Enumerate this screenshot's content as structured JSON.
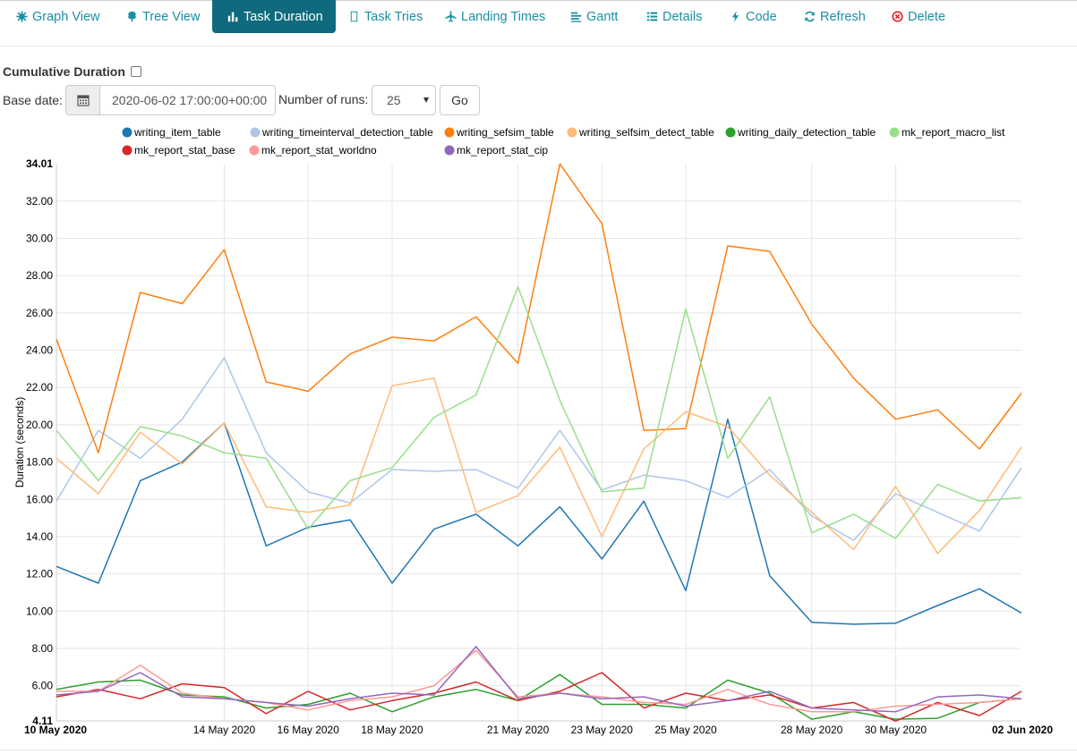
{
  "tabs": [
    {
      "label": "Graph View",
      "icon": "graph-icon",
      "active": false
    },
    {
      "label": "Tree View",
      "icon": "tree-icon",
      "active": false
    },
    {
      "label": "Task Duration",
      "icon": "bar-chart-icon",
      "active": true
    },
    {
      "label": "Task Tries",
      "icon": "tries-icon",
      "active": false
    },
    {
      "label": "Landing Times",
      "icon": "plane-icon",
      "active": false
    },
    {
      "label": "Gantt",
      "icon": "gantt-icon",
      "active": false
    },
    {
      "label": "Details",
      "icon": "list-icon",
      "active": false
    },
    {
      "label": "Code",
      "icon": "bolt-icon",
      "active": false
    },
    {
      "label": "Refresh",
      "icon": "refresh-icon",
      "active": false
    },
    {
      "label": "Delete",
      "icon": "delete-icon",
      "active": false
    }
  ],
  "controls": {
    "cumulative_label": "Cumulative Duration",
    "cumulative_checked": false,
    "base_date_label": "Base date:",
    "base_date_value": "2020-06-02 17:00:00+00:00",
    "runs_label": "Number of runs:",
    "runs_value": "25",
    "go_label": "Go"
  },
  "colors": {
    "accent": "#1b8fa4",
    "active_tab": "#0f6a7e",
    "delete": "#d9262d"
  },
  "chart_data": {
    "type": "line",
    "title": "",
    "xlabel": "",
    "ylabel": "Duration (seconds)",
    "ylim": [
      4.11,
      34.01
    ],
    "y_edge_labels": [
      "4.11",
      "34.01"
    ],
    "y_ticks": [
      "6.00",
      "8.00",
      "10.00",
      "12.00",
      "14.00",
      "16.00",
      "18.00",
      "20.00",
      "22.00",
      "24.00",
      "26.00",
      "28.00",
      "30.00",
      "32.00"
    ],
    "x_start": "2020-05-10",
    "x_end": "2020-06-02",
    "x_edge_labels": [
      "10 May 2020",
      "02 Jun 2020"
    ],
    "x_ticks": [
      {
        "date": "2020-05-14",
        "label": "14 May 2020"
      },
      {
        "date": "2020-05-16",
        "label": "16 May 2020"
      },
      {
        "date": "2020-05-18",
        "label": "18 May 2020"
      },
      {
        "date": "2020-05-21",
        "label": "21 May 2020"
      },
      {
        "date": "2020-05-23",
        "label": "23 May 2020"
      },
      {
        "date": "2020-05-25",
        "label": "25 May 2020"
      },
      {
        "date": "2020-05-28",
        "label": "28 May 2020"
      },
      {
        "date": "2020-05-30",
        "label": "30 May 2020"
      }
    ],
    "grid": true,
    "legend": "top",
    "x": [
      "2020-05-10",
      "2020-05-11",
      "2020-05-12",
      "2020-05-13",
      "2020-05-14",
      "2020-05-15",
      "2020-05-16",
      "2020-05-17",
      "2020-05-18",
      "2020-05-19",
      "2020-05-20",
      "2020-05-21",
      "2020-05-22",
      "2020-05-23",
      "2020-05-24",
      "2020-05-25",
      "2020-05-26",
      "2020-05-27",
      "2020-05-28",
      "2020-05-29",
      "2020-05-30",
      "2020-05-31",
      "2020-06-01",
      "2020-06-02"
    ],
    "series": [
      {
        "name": "writing_item_table",
        "color": "#1f77b4",
        "values": [
          12.4,
          11.5,
          17.0,
          18.0,
          20.1,
          13.5,
          14.5,
          14.9,
          11.5,
          14.4,
          15.2,
          13.5,
          15.6,
          12.8,
          15.9,
          11.1,
          20.3,
          11.9,
          9.4,
          9.3,
          9.35,
          10.3,
          11.2,
          9.9
        ]
      },
      {
        "name": "writing_timeinterval_detection_table",
        "color": "#aec7e8",
        "values": [
          15.9,
          19.7,
          18.2,
          20.3,
          23.6,
          18.5,
          16.4,
          15.8,
          17.6,
          17.5,
          17.6,
          16.6,
          19.7,
          16.5,
          17.3,
          17.0,
          16.1,
          17.6,
          15.1,
          13.8,
          16.3,
          15.3,
          14.3,
          17.7
        ]
      },
      {
        "name": "writing_sefsim_table",
        "color": "#ff7f0e",
        "values": [
          24.6,
          18.5,
          27.1,
          26.5,
          29.4,
          22.3,
          21.8,
          23.8,
          24.7,
          24.5,
          25.8,
          23.3,
          34.0,
          30.8,
          19.7,
          19.8,
          29.6,
          29.3,
          25.4,
          22.5,
          20.3,
          20.8,
          18.7,
          21.7
        ]
      },
      {
        "name": "writing_selfsim_detect_table",
        "color": "#ffbb78",
        "values": [
          18.2,
          16.3,
          19.6,
          17.9,
          20.1,
          15.6,
          15.3,
          15.7,
          22.1,
          22.5,
          15.3,
          16.2,
          18.8,
          14.0,
          18.7,
          20.7,
          19.9,
          17.3,
          15.3,
          13.3,
          16.7,
          13.1,
          15.4,
          18.8
        ]
      },
      {
        "name": "writing_daily_detection_table",
        "color": "#2ca02c",
        "values": [
          5.8,
          6.2,
          6.3,
          5.5,
          5.4,
          4.8,
          5.0,
          5.6,
          4.6,
          5.4,
          5.8,
          5.2,
          6.6,
          5.0,
          5.0,
          4.8,
          6.3,
          5.6,
          4.2,
          4.6,
          4.2,
          4.25,
          5.1,
          5.3
        ]
      },
      {
        "name": "mk_report_macro_list",
        "color": "#98df8a",
        "values": [
          19.7,
          17.0,
          19.9,
          19.4,
          18.5,
          18.2,
          14.4,
          17.0,
          17.7,
          20.4,
          21.6,
          27.4,
          21.3,
          16.4,
          16.6,
          26.2,
          18.2,
          21.5,
          14.2,
          15.2,
          13.9,
          16.8,
          15.9,
          16.1
        ]
      },
      {
        "name": "mk_report_stat_base",
        "color": "#d62728",
        "values": [
          5.4,
          5.8,
          5.3,
          6.1,
          5.9,
          4.5,
          5.7,
          4.7,
          5.2,
          5.6,
          6.2,
          5.2,
          5.7,
          6.7,
          4.8,
          5.6,
          5.2,
          5.5,
          4.8,
          5.1,
          4.1,
          5.1,
          4.4,
          5.7
        ]
      },
      {
        "name": "mk_report_stat_worldno",
        "color": "#ff9896",
        "values": [
          5.7,
          5.7,
          7.1,
          5.6,
          5.3,
          5.1,
          4.7,
          5.2,
          5.4,
          6.0,
          7.9,
          5.4,
          5.6,
          5.4,
          5.1,
          5.0,
          5.8,
          5.0,
          4.6,
          4.6,
          4.9,
          5.0,
          5.1,
          5.3
        ]
      },
      {
        "name": "mk_report_stat_cip",
        "color": "#9467bd",
        "values": [
          5.5,
          5.7,
          6.7,
          5.4,
          5.3,
          5.1,
          4.9,
          5.3,
          5.6,
          5.5,
          8.1,
          5.3,
          5.6,
          5.3,
          5.4,
          4.9,
          5.2,
          5.7,
          4.8,
          4.7,
          4.6,
          5.4,
          5.5,
          5.3
        ]
      }
    ]
  }
}
